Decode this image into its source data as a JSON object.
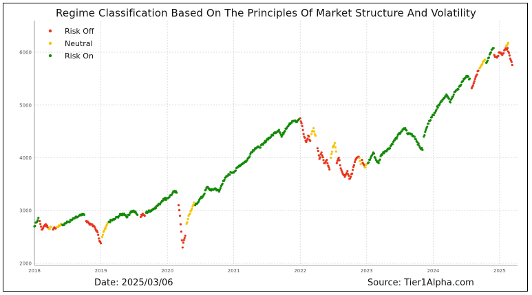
{
  "title": "Regime Classification Based On The Principles Of Market Structure And Volatility",
  "footer": {
    "date": "Date: 2025/03/06",
    "source": "Source: Tier1Alpha.com"
  },
  "chart_data": {
    "type": "scatter",
    "title": "Regime Classification Based On The Principles Of Market Structure And Volatility",
    "xlabel": "",
    "ylabel": "",
    "xlim": [
      2018.0,
      2025.27
    ],
    "ylim": [
      1960,
      6600
    ],
    "grid": true,
    "legend_position": "top-left",
    "x_ticks": [
      {
        "value": 2018,
        "label": "2018"
      },
      {
        "value": 2019,
        "label": "2019"
      },
      {
        "value": 2020,
        "label": "2020"
      },
      {
        "value": 2021,
        "label": "2021"
      },
      {
        "value": 2022,
        "label": "2022"
      },
      {
        "value": 2023,
        "label": "2023"
      },
      {
        "value": 2024,
        "label": "2024"
      },
      {
        "value": 2025,
        "label": "2025"
      }
    ],
    "y_ticks": [
      {
        "value": 2000,
        "label": "2000"
      },
      {
        "value": 3000,
        "label": "3000"
      },
      {
        "value": 4000,
        "label": "4000"
      },
      {
        "value": 5000,
        "label": "5000"
      },
      {
        "value": 6000,
        "label": "6000"
      }
    ],
    "colors": {
      "risk_off": "#e8341c",
      "neutral": "#f5c400",
      "risk_on": "#138a07"
    },
    "series": [
      {
        "name": "Risk Off",
        "key": "risk_off",
        "color": "#e8341c",
        "segments": [
          [
            [
              2018.08,
              2800
            ],
            [
              2018.11,
              2640
            ],
            [
              2018.14,
              2700
            ],
            [
              2018.17,
              2740
            ],
            [
              2018.2,
              2680
            ]
          ],
          [
            [
              2018.28,
              2640
            ],
            [
              2018.3,
              2680
            ],
            [
              2018.32,
              2660
            ]
          ],
          [
            [
              2018.78,
              2800
            ],
            [
              2018.82,
              2760
            ],
            [
              2018.86,
              2740
            ],
            [
              2018.9,
              2700
            ],
            [
              2018.94,
              2620
            ],
            [
              2018.97,
              2470
            ],
            [
              2019.0,
              2380
            ]
          ],
          [
            [
              2019.6,
              2880
            ],
            [
              2019.63,
              2940
            ],
            [
              2019.66,
              2900
            ]
          ],
          [
            [
              2020.17,
              3100
            ],
            [
              2020.19,
              2900
            ],
            [
              2020.21,
              2600
            ],
            [
              2020.23,
              2300
            ],
            [
              2020.25,
              2440
            ],
            [
              2020.27,
              2520
            ]
          ],
          [
            [
              2022.0,
              4750
            ],
            [
              2022.03,
              4600
            ],
            [
              2022.06,
              4400
            ],
            [
              2022.09,
              4300
            ],
            [
              2022.12,
              4420
            ],
            [
              2022.15,
              4320
            ]
          ],
          [
            [
              2022.26,
              4180
            ],
            [
              2022.29,
              3980
            ],
            [
              2022.32,
              4100
            ],
            [
              2022.36,
              3900
            ],
            [
              2022.4,
              3960
            ],
            [
              2022.44,
              3780
            ]
          ],
          [
            [
              2022.55,
              3900
            ],
            [
              2022.58,
              4000
            ],
            [
              2022.61,
              3800
            ],
            [
              2022.64,
              3700
            ],
            [
              2022.67,
              3640
            ],
            [
              2022.71,
              3750
            ],
            [
              2022.74,
              3600
            ],
            [
              2022.78,
              3700
            ],
            [
              2022.81,
              3860
            ],
            [
              2022.84,
              3980
            ],
            [
              2022.88,
              4020
            ]
          ],
          [
            [
              2022.93,
              3960
            ],
            [
              2022.96,
              3860
            ]
          ],
          [
            [
              2024.58,
              5320
            ],
            [
              2024.62,
              5450
            ],
            [
              2024.65,
              5560
            ],
            [
              2024.68,
              5650
            ]
          ],
          [
            [
              2024.92,
              5950
            ],
            [
              2024.96,
              5900
            ],
            [
              2025.0,
              6000
            ],
            [
              2025.04,
              5950
            ],
            [
              2025.08,
              6050
            ],
            [
              2025.12,
              6080
            ],
            [
              2025.16,
              5880
            ],
            [
              2025.19,
              5760
            ]
          ]
        ]
      },
      {
        "name": "Neutral",
        "key": "neutral",
        "color": "#f5c400",
        "segments": [
          [
            [
              2018.22,
              2650
            ],
            [
              2018.25,
              2690
            ]
          ],
          [
            [
              2018.34,
              2690
            ],
            [
              2018.37,
              2720
            ],
            [
              2018.4,
              2750
            ]
          ],
          [
            [
              2019.02,
              2500
            ],
            [
              2019.05,
              2620
            ],
            [
              2019.08,
              2700
            ],
            [
              2019.1,
              2760
            ]
          ],
          [
            [
              2020.29,
              2750
            ],
            [
              2020.32,
              2900
            ],
            [
              2020.35,
              2980
            ],
            [
              2020.38,
              3080
            ],
            [
              2020.4,
              3150
            ]
          ],
          [
            [
              2022.17,
              4450
            ],
            [
              2022.2,
              4560
            ],
            [
              2022.23,
              4420
            ]
          ],
          [
            [
              2022.46,
              4000
            ],
            [
              2022.49,
              4200
            ],
            [
              2022.52,
              4280
            ],
            [
              2022.54,
              4120
            ]
          ],
          [
            [
              2022.89,
              4000
            ],
            [
              2022.91,
              3880
            ]
          ],
          [
            [
              2022.97,
              3820
            ],
            [
              2023.0,
              3880
            ]
          ],
          [
            [
              2024.7,
              5700
            ],
            [
              2024.74,
              5780
            ],
            [
              2024.78,
              5860
            ]
          ],
          [
            [
              2025.1,
              6120
            ],
            [
              2025.13,
              6180
            ]
          ]
        ]
      },
      {
        "name": "Risk On",
        "key": "risk_on",
        "color": "#138a07",
        "segments": [
          [
            [
              2018.0,
              2700
            ],
            [
              2018.03,
              2780
            ],
            [
              2018.06,
              2860
            ]
          ],
          [
            [
              2018.42,
              2730
            ],
            [
              2018.5,
              2780
            ],
            [
              2018.55,
              2810
            ],
            [
              2018.6,
              2850
            ],
            [
              2018.65,
              2880
            ],
            [
              2018.7,
              2910
            ],
            [
              2018.75,
              2920
            ]
          ],
          [
            [
              2019.12,
              2790
            ],
            [
              2019.2,
              2830
            ],
            [
              2019.25,
              2880
            ],
            [
              2019.3,
              2920
            ],
            [
              2019.35,
              2940
            ],
            [
              2019.4,
              2880
            ],
            [
              2019.45,
              2980
            ],
            [
              2019.5,
              2990
            ],
            [
              2019.55,
              2920
            ]
          ],
          [
            [
              2019.68,
              2960
            ],
            [
              2019.75,
              3000
            ],
            [
              2019.82,
              3060
            ],
            [
              2019.88,
              3120
            ],
            [
              2019.94,
              3220
            ],
            [
              2020.0,
              3230
            ],
            [
              2020.06,
              3300
            ],
            [
              2020.1,
              3360
            ],
            [
              2020.14,
              3340
            ]
          ],
          [
            [
              2020.42,
              3100
            ],
            [
              2020.48,
              3200
            ],
            [
              2020.54,
              3280
            ],
            [
              2020.6,
              3450
            ],
            [
              2020.66,
              3380
            ],
            [
              2020.72,
              3420
            ],
            [
              2020.78,
              3360
            ],
            [
              2020.84,
              3560
            ],
            [
              2020.9,
              3650
            ],
            [
              2020.96,
              3720
            ],
            [
              2021.02,
              3750
            ],
            [
              2021.08,
              3850
            ],
            [
              2021.14,
              3900
            ],
            [
              2021.2,
              3950
            ],
            [
              2021.26,
              4100
            ],
            [
              2021.32,
              4180
            ],
            [
              2021.38,
              4200
            ],
            [
              2021.44,
              4250
            ],
            [
              2021.5,
              4350
            ],
            [
              2021.56,
              4400
            ],
            [
              2021.62,
              4480
            ],
            [
              2021.68,
              4530
            ],
            [
              2021.72,
              4400
            ],
            [
              2021.78,
              4550
            ],
            [
              2021.84,
              4650
            ],
            [
              2021.9,
              4700
            ],
            [
              2021.95,
              4680
            ],
            [
              2021.98,
              4730
            ]
          ],
          [
            [
              2023.02,
              3900
            ],
            [
              2023.06,
              4000
            ],
            [
              2023.1,
              4100
            ],
            [
              2023.14,
              3960
            ],
            [
              2023.18,
              3900
            ],
            [
              2023.22,
              4060
            ],
            [
              2023.28,
              4130
            ],
            [
              2023.34,
              4180
            ],
            [
              2023.4,
              4300
            ],
            [
              2023.46,
              4400
            ],
            [
              2023.52,
              4500
            ],
            [
              2023.58,
              4560
            ],
            [
              2023.62,
              4450
            ],
            [
              2023.66,
              4460
            ],
            [
              2023.72,
              4400
            ],
            [
              2023.76,
              4300
            ],
            [
              2023.8,
              4200
            ],
            [
              2023.84,
              4150
            ]
          ],
          [
            [
              2023.86,
              4400
            ],
            [
              2023.9,
              4560
            ],
            [
              2023.94,
              4700
            ],
            [
              2023.98,
              4770
            ],
            [
              2024.02,
              4850
            ],
            [
              2024.08,
              5000
            ],
            [
              2024.14,
              5100
            ],
            [
              2024.2,
              5200
            ],
            [
              2024.26,
              5050
            ],
            [
              2024.32,
              5250
            ],
            [
              2024.38,
              5300
            ],
            [
              2024.44,
              5450
            ],
            [
              2024.5,
              5550
            ],
            [
              2024.55,
              5500
            ]
          ],
          [
            [
              2024.8,
              5800
            ],
            [
              2024.84,
              5900
            ],
            [
              2024.88,
              6050
            ],
            [
              2024.91,
              6080
            ]
          ]
        ]
      }
    ]
  }
}
